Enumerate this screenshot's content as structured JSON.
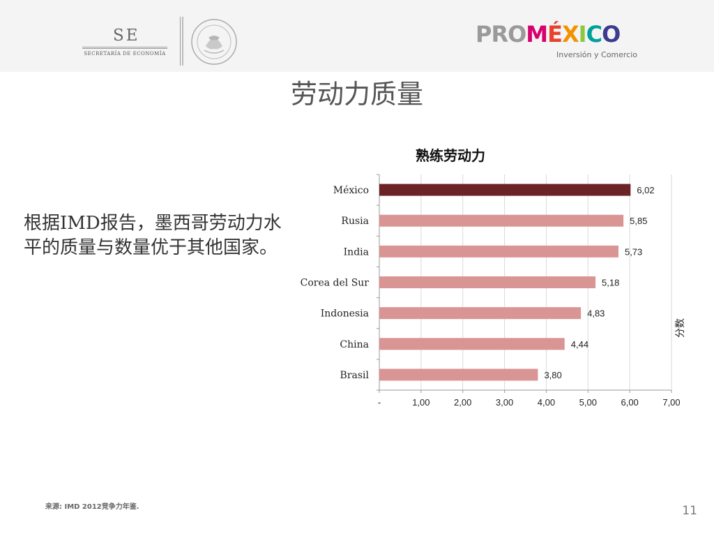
{
  "header": {
    "se_logo": {
      "letters": "SE",
      "subtitle": "SECRETARÍA DE ECONOMÍA"
    },
    "seal_icon": "mexican-coat-of-arms-seal",
    "promexico_logo": {
      "pro": "PRO",
      "mexico": "MÉXICO",
      "tagline": "Inversión y Comercio",
      "letter_colors": [
        "#d6006f",
        "#e8412c",
        "#f39200",
        "#8dc63f",
        "#00a19a",
        "#3b3b8f"
      ]
    }
  },
  "slide": {
    "title": "劳动力质量",
    "body": "根据IMD报告，墨西哥劳动力水平的质量与数量优于其他国家。",
    "footnote": "来源: IMD 2012竞争力年鉴.",
    "page_number": "11"
  },
  "chart_data": {
    "type": "bar",
    "orientation": "horizontal",
    "title": "熟练劳动力",
    "ylabel": "分数",
    "categories": [
      "México",
      "Rusia",
      "India",
      "Corea del Sur",
      "Indonesia",
      "China",
      "Brasil"
    ],
    "values": [
      6.02,
      5.85,
      5.73,
      5.18,
      4.83,
      4.44,
      3.8
    ],
    "data_labels": [
      "6,02",
      "5,85",
      "5,73",
      "5,18",
      "4,83",
      "4,44",
      "3,80"
    ],
    "xlim": [
      0,
      7
    ],
    "x_ticks": [
      0,
      1,
      2,
      3,
      4,
      5,
      6,
      7
    ],
    "x_tick_labels": [
      "-",
      "1,00",
      "2,00",
      "3,00",
      "4,00",
      "5,00",
      "6,00",
      "7,00"
    ],
    "grid": true,
    "highlight_color": "#6b2326",
    "bar_color": "#d99594"
  }
}
